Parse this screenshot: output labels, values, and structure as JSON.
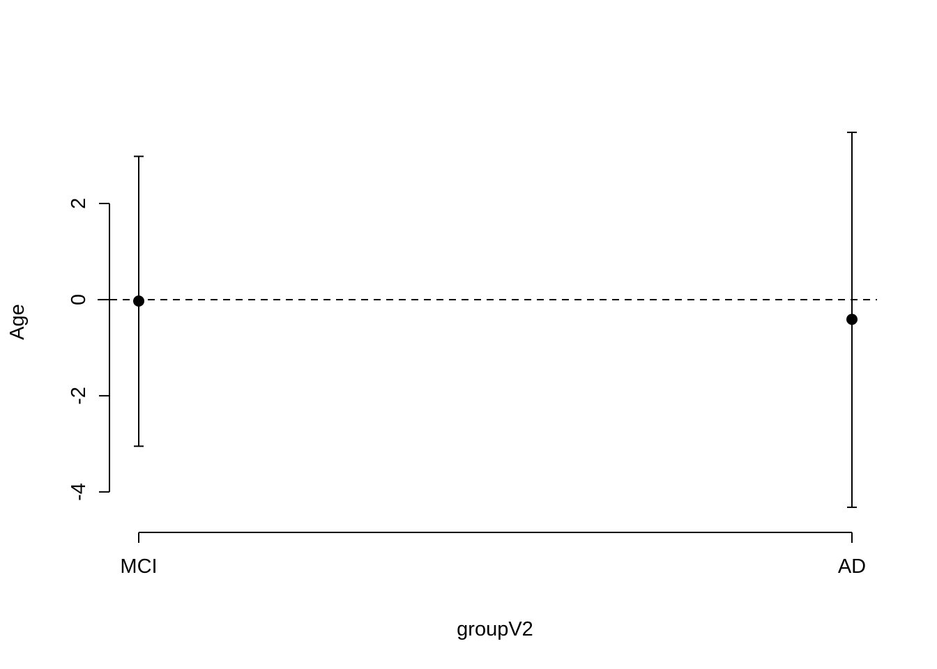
{
  "chart_data": {
    "type": "scatter",
    "title": "",
    "xlabel": "groupV2",
    "ylabel": "Age",
    "categories": [
      "MCI",
      "AD"
    ],
    "series": [
      {
        "points": [
          {
            "category": "MCI",
            "estimate": -0.03,
            "lower": -3.05,
            "upper": 2.98
          },
          {
            "category": "AD",
            "estimate": -0.41,
            "lower": -4.32,
            "upper": 3.48
          }
        ]
      }
    ],
    "y_ticks": [
      "-4",
      "-2",
      "0",
      "2"
    ],
    "y_tick_values": [
      -4,
      -2,
      0,
      2
    ],
    "ylim": [
      -4.64,
      4.16
    ],
    "reference_line": {
      "y": 0,
      "style": "dashed"
    },
    "grid": false,
    "legend": "none",
    "colors": {
      "marks": "#000000",
      "background": "#ffffff"
    }
  }
}
